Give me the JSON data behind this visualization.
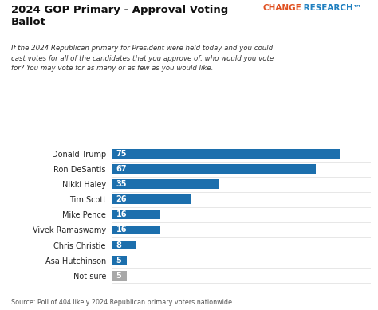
{
  "title_left": "2024 GOP Primary - Approval Voting\nBallot",
  "title_right_change": "CHANGE",
  "title_right_research": " RESEARCH™",
  "subtitle": "If the 2024 Republican primary for President were held today and you could\ncast votes for all of the candidates that you approve of, who would you vote\nfor? You may vote for as many or as few as you would like.",
  "candidates": [
    "Donald Trump",
    "Ron DeSantis",
    "Nikki Haley",
    "Tim Scott",
    "Mike Pence",
    "Vivek Ramaswamy",
    "Chris Christie",
    "Asa Hutchinson",
    "Not sure"
  ],
  "values": [
    75,
    67,
    35,
    26,
    16,
    16,
    8,
    5,
    5
  ],
  "bar_colors": [
    "#1c6fad",
    "#1c6fad",
    "#1c6fad",
    "#1c6fad",
    "#1c6fad",
    "#1c6fad",
    "#1c6fad",
    "#1c6fad",
    "#a8a8a8"
  ],
  "source": "Source: Poll of 404 likely 2024 Republican primary voters nationwide",
  "bg_color": "#ffffff",
  "bar_text_color": "#ffffff",
  "label_color": "#222222",
  "title_color": "#111111",
  "subtitle_color": "#333333",
  "source_color": "#555555",
  "change_color": "#e05020",
  "research_color": "#2080c0",
  "xlim": [
    0,
    85
  ]
}
